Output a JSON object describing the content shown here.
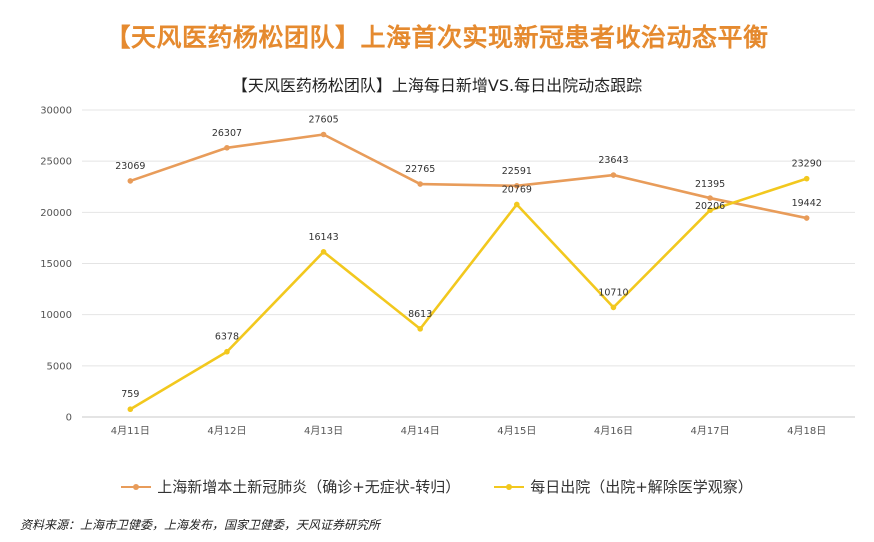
{
  "headline": "【天风医药杨松团队】上海首次实现新冠患者收治动态平衡",
  "source": "资料来源：上海市卫健委，上海发布，国家卫健委，天风证券研究所",
  "chart_data": {
    "type": "line",
    "title": "【天风医药杨松团队】上海每日新增VS.每日出院动态跟踪",
    "categories": [
      "4月11日",
      "4月12日",
      "4月13日",
      "4月14日",
      "4月15日",
      "4月16日",
      "4月17日",
      "4月18日"
    ],
    "ylim": [
      0,
      30000
    ],
    "yticks": [
      0,
      5000,
      10000,
      15000,
      20000,
      25000,
      30000
    ],
    "grid": true,
    "legend_position": "bottom",
    "series": [
      {
        "name": "上海新增本土新冠肺炎（确诊+无症状-转归）",
        "color": "#e89c5a",
        "values": [
          23069,
          26307,
          27605,
          22765,
          22591,
          23643,
          21395,
          19442
        ]
      },
      {
        "name": "每日出院（出院+解除医学观察）",
        "color": "#f2c81e",
        "values": [
          759,
          6378,
          16143,
          8613,
          20769,
          10710,
          20206,
          23290
        ]
      }
    ]
  }
}
